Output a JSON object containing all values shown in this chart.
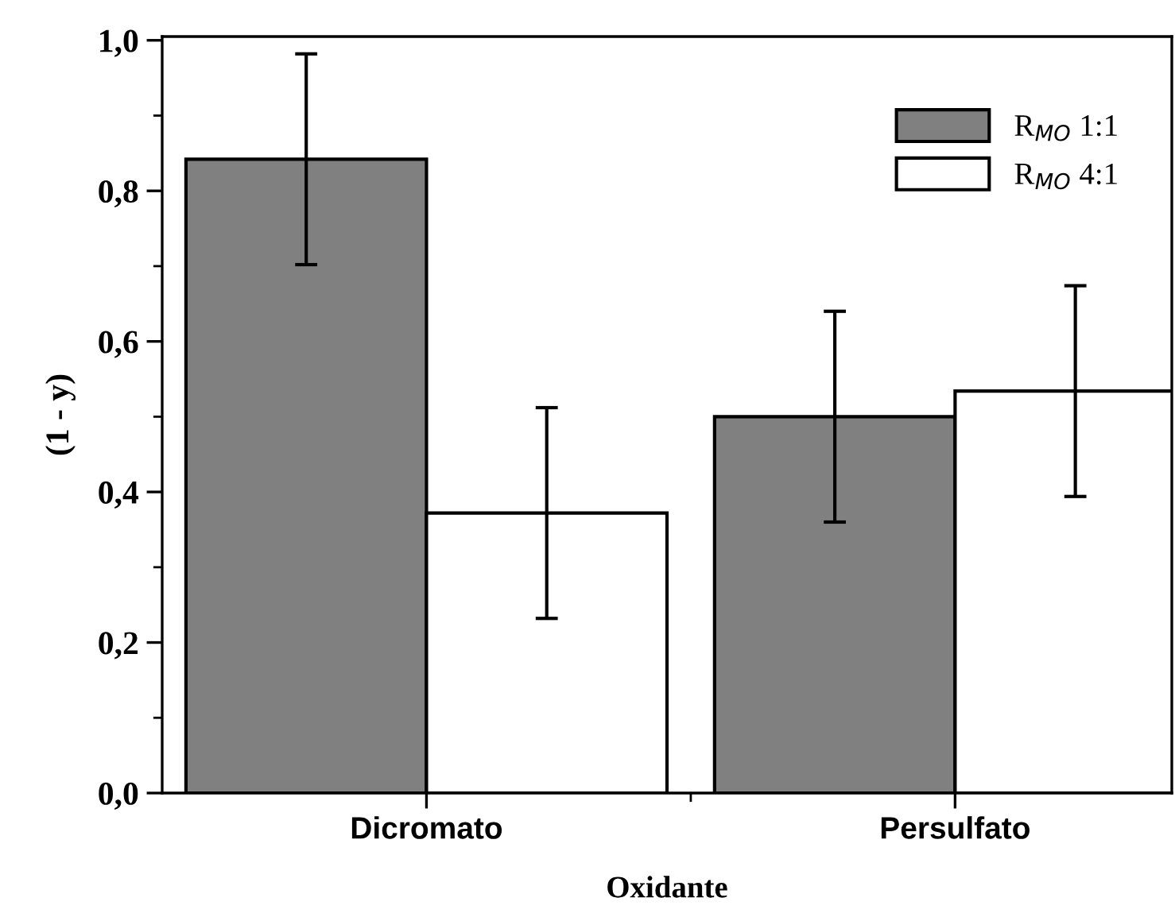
{
  "chart_data": {
    "type": "bar",
    "xlabel": "Oxidante",
    "ylabel": "(1 - y)",
    "categories": [
      "Dicromato",
      "Persulfato"
    ],
    "series": [
      {
        "name": "R$_{MO}$ 1:1",
        "color": "#808080",
        "values": [
          0.842,
          0.5
        ],
        "errors": [
          0.14,
          0.14
        ]
      },
      {
        "name": "R$_{MO}$ 4:1",
        "color": "#ffffff",
        "values": [
          0.372,
          0.534
        ],
        "errors": [
          0.14,
          0.14
        ]
      }
    ],
    "ylim": [
      0,
      1.005
    ],
    "yticks": [
      {
        "value": 0,
        "label": "0,0"
      },
      {
        "value": 0.2,
        "label": "0,2"
      },
      {
        "value": 0.4,
        "label": "0,4"
      },
      {
        "value": 0.6,
        "label": "0,6"
      },
      {
        "value": 0.8,
        "label": "0,8"
      },
      {
        "value": 1.0,
        "label": "1,0"
      }
    ],
    "grid": false,
    "legend": "top right"
  }
}
